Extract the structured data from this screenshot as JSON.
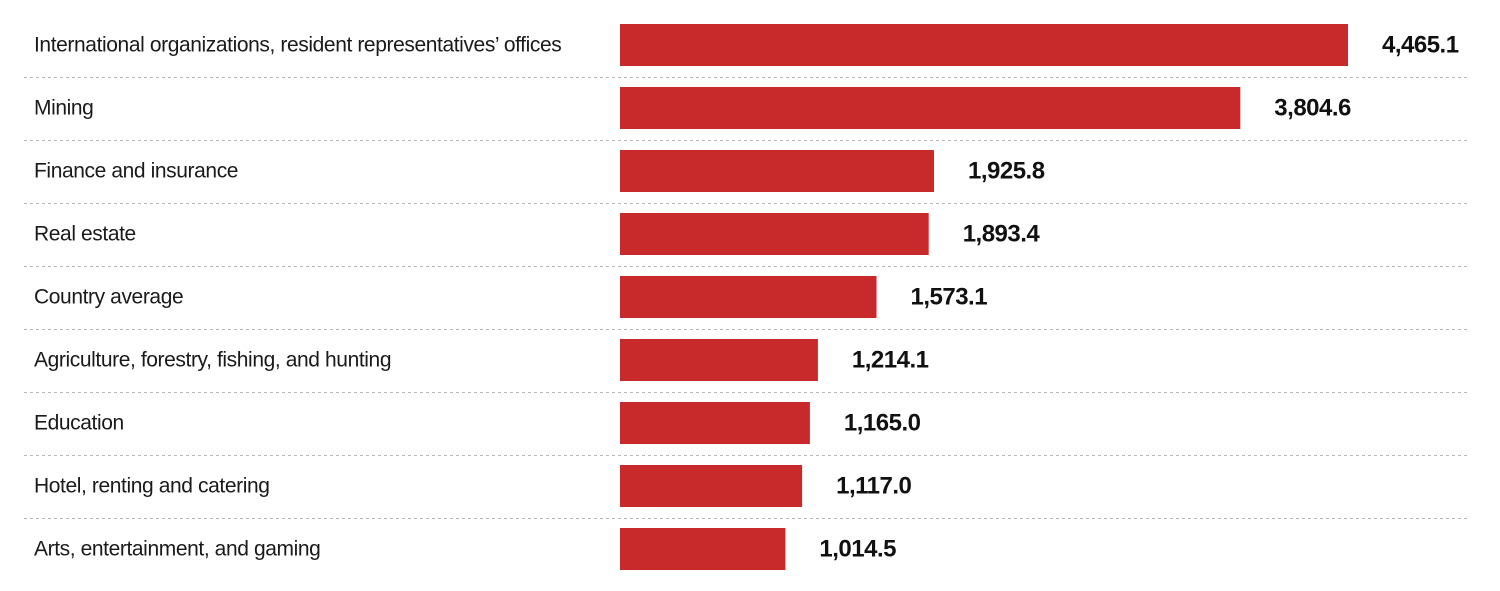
{
  "chart_data": {
    "type": "bar",
    "orientation": "horizontal",
    "categories": [
      "International organizations, resident representatives’ offices",
      "Mining",
      "Finance and insurance",
      "Real estate",
      "Country average",
      "Agriculture, forestry, fishing, and hunting",
      "Education",
      "Hotel, renting and catering",
      "Arts, entertainment, and gaming"
    ],
    "values": [
      4465.1,
      3804.6,
      1925.8,
      1893.4,
      1573.1,
      1214.1,
      1165.0,
      1117.0,
      1014.5
    ],
    "value_labels": [
      "4,465.1",
      "3,804.6",
      "1,925.8",
      "1,893.4",
      "1,573.1",
      "1,214.1",
      "1,165.0",
      "1,117.0",
      "1,014.5"
    ],
    "xlim": [
      0,
      4465.1
    ],
    "grid": false,
    "row_separators": true,
    "bar_color": "#c8292b",
    "title": "",
    "xlabel": "",
    "ylabel": ""
  }
}
